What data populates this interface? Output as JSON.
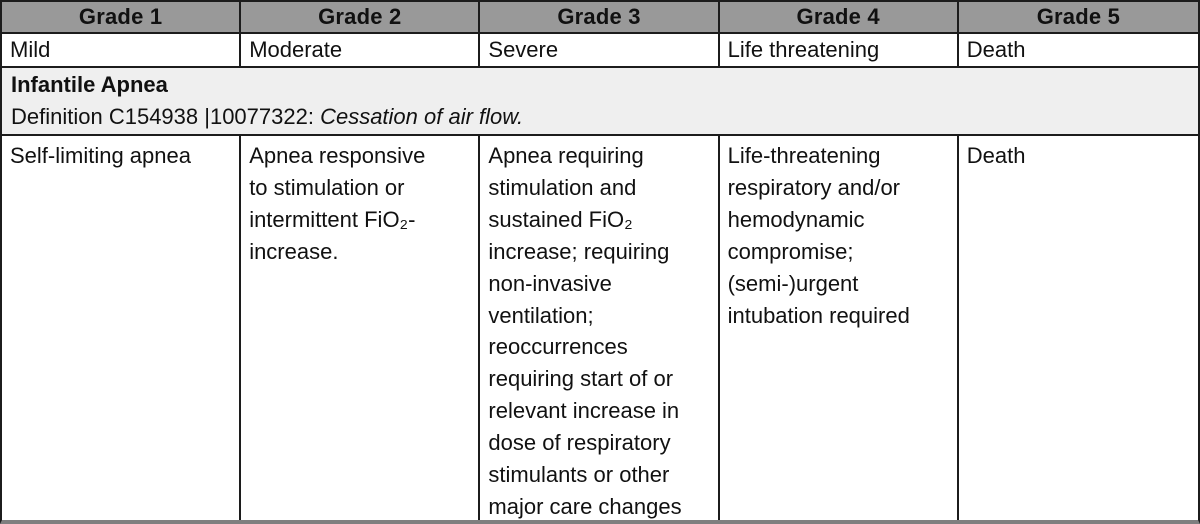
{
  "table": {
    "headers": [
      "Grade 1",
      "Grade 2",
      "Grade 3",
      "Grade 4",
      "Grade 5"
    ],
    "severity_row": [
      "Mild",
      "Moderate",
      "Severe",
      "Life threatening",
      "Death"
    ],
    "section": {
      "title": "Infantile Apnea",
      "definition_prefix": "Definition C154938 |10077322: ",
      "definition_italic": "Cessation of air flow."
    },
    "grade_descriptions": [
      "Self-limiting apnea",
      "Apnea responsive\nto stimulation or\nintermittent FiO₂-\nincrease.",
      "Apnea requiring\nstimulation and\nsustained FiO₂\nincrease; requiring\nnon-invasive\nventilation;\nreoccurrences\nrequiring start of or\nrelevant increase in\ndose of respiratory\nstimulants or other\nmajor care changes",
      "Life-threatening\nrespiratory and/or\nhemodynamic\ncompromise;\n(semi-)urgent\nintubation required",
      "Death"
    ]
  },
  "colors": {
    "header_bg": "#999999",
    "section_bg": "#efefef",
    "border": "#1c1c1c",
    "bottom_border": "#7f7f7f"
  }
}
